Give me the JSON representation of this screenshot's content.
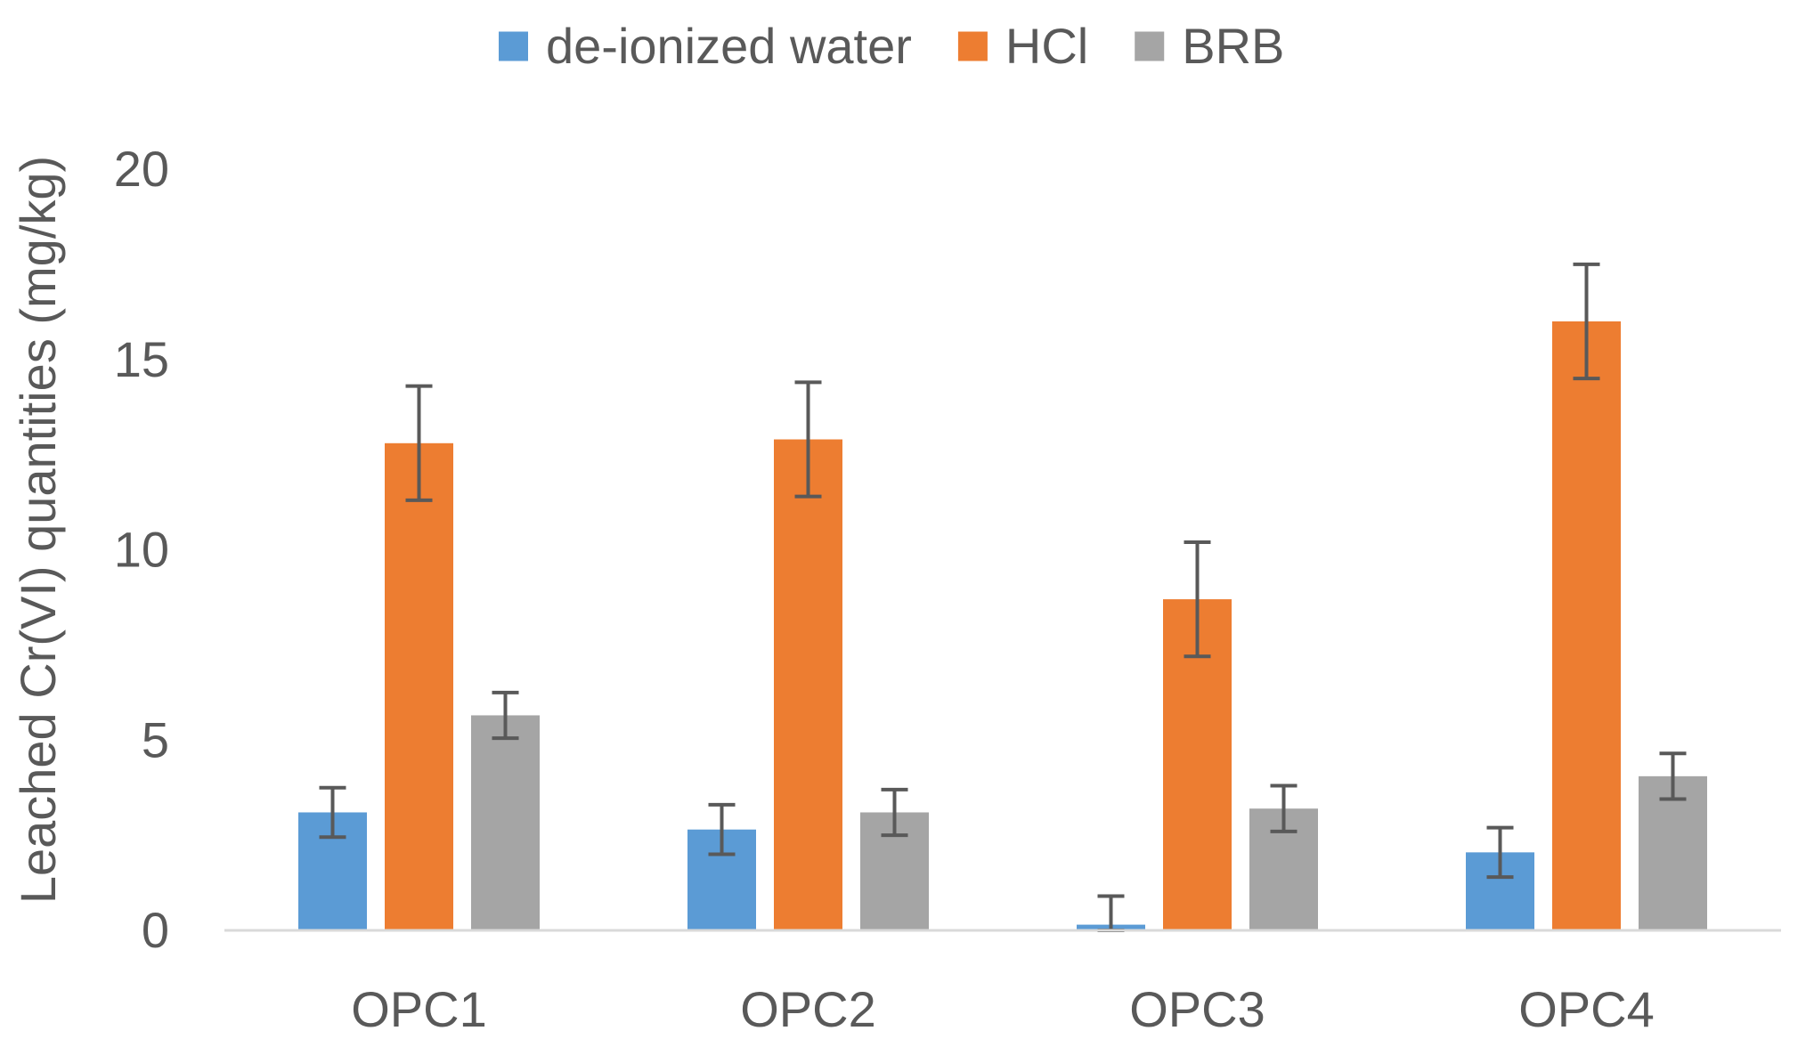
{
  "chart_data": {
    "type": "bar",
    "title": "",
    "xlabel": "",
    "ylabel": "Leached Cr(VI) quantities (mg/kg)",
    "categories": [
      "OPC1",
      "OPC2",
      "OPC3",
      "OPC4"
    ],
    "ylim": [
      0,
      20
    ],
    "yticks": [
      0,
      5,
      10,
      15,
      20
    ],
    "ytick_labels": [
      "0",
      "5",
      "10",
      "15",
      "20"
    ],
    "grid": false,
    "legend_position": "top-center",
    "series": [
      {
        "name": "de-ionized water",
        "color": "#5B9BD5",
        "values": [
          3.1,
          2.65,
          0.15,
          2.05
        ],
        "errors": [
          0.65,
          0.65,
          0.75,
          0.65
        ]
      },
      {
        "name": "HCl",
        "color": "#ED7D31",
        "values": [
          12.8,
          12.9,
          8.7,
          16.0
        ],
        "errors": [
          1.5,
          1.5,
          1.5,
          1.5
        ]
      },
      {
        "name": "BRB",
        "color": "#A5A5A5",
        "values": [
          5.65,
          3.1,
          3.2,
          4.05
        ],
        "errors": [
          0.6,
          0.6,
          0.6,
          0.6
        ]
      }
    ]
  }
}
